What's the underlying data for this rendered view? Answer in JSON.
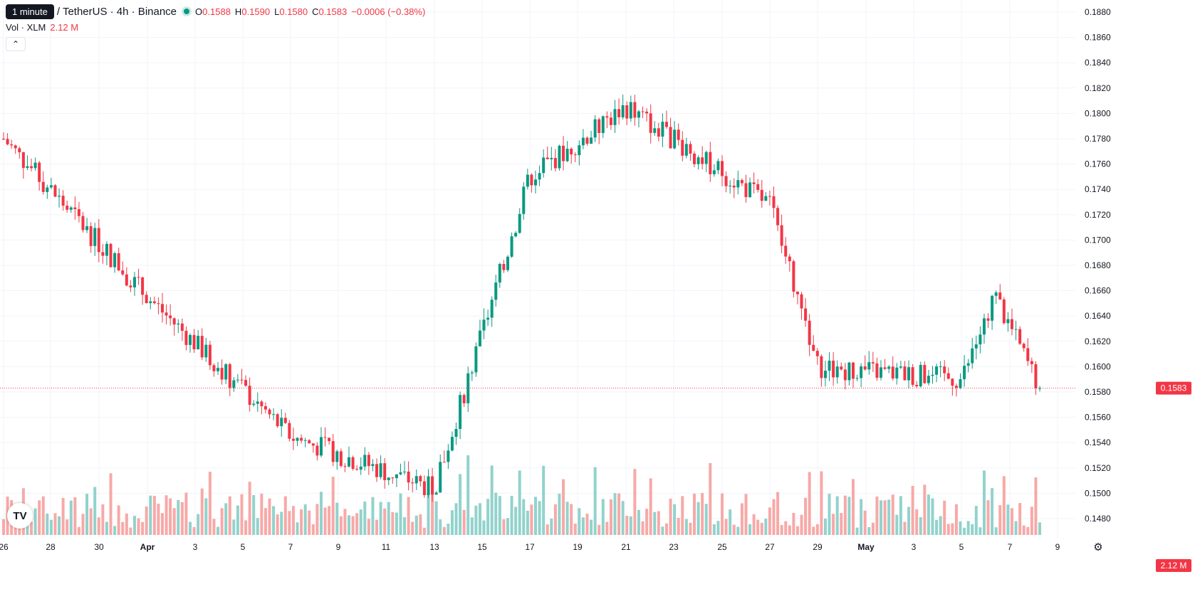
{
  "header": {
    "tooltip": "1 minute",
    "symbol": "/ TetherUS · 4h · Binance",
    "o_label": "O",
    "o_value": "0.1588",
    "h_label": "H",
    "h_value": "0.1590",
    "l_label": "L",
    "l_value": "0.1580",
    "c_label": "C",
    "c_value": "0.1583",
    "change": "−0.0006 (−0.38%)",
    "vol_label": "Vol · XLM",
    "vol_value": "2.12 M",
    "collapse_icon": "chevron-up-icon"
  },
  "badges": {
    "price": "0.1583",
    "volume": "2.12 M"
  },
  "colors": {
    "up": "#089981",
    "down": "#f23645",
    "vol_up": "#92d2cc",
    "vol_down": "#f7a9a7",
    "grid": "#f0f3fa"
  },
  "chart_data": {
    "type": "candlestick",
    "interval": "4h",
    "ylim": [
      0.1466,
      0.1889
    ],
    "y_ticks": [
      "0.1880",
      "0.1860",
      "0.1840",
      "0.1820",
      "0.1800",
      "0.1780",
      "0.1760",
      "0.1740",
      "0.1720",
      "0.1700",
      "0.1680",
      "0.1660",
      "0.1640",
      "0.1620",
      "0.1600",
      "0.1580",
      "0.1560",
      "0.1540",
      "0.1520",
      "0.1500",
      "0.1480"
    ],
    "x_ticks": [
      "26",
      "28",
      "30",
      "Apr",
      "3",
      "5",
      "7",
      "9",
      "11",
      "13",
      "15",
      "17",
      "19",
      "21",
      "23",
      "25",
      "27",
      "29",
      "May",
      "3",
      "5",
      "7",
      "9"
    ],
    "last_price": 0.1583,
    "key_points": [
      {
        "label": "26",
        "close": 0.178
      },
      {
        "label": "Apr",
        "close": 0.1655
      },
      {
        "label": "7",
        "close": 0.1545
      },
      {
        "label": "13",
        "close": 0.1503
      },
      {
        "label": "17",
        "close": 0.175
      },
      {
        "label": "21",
        "close": 0.1805
      },
      {
        "label": "27",
        "close": 0.1728
      },
      {
        "label": "29",
        "close": 0.16
      },
      {
        "label": "5",
        "close": 0.159
      },
      {
        "label": "7",
        "close": 0.1655
      },
      {
        "label": "9",
        "close": 0.1583
      }
    ],
    "volume_last": "2.12 M",
    "grid": true
  }
}
